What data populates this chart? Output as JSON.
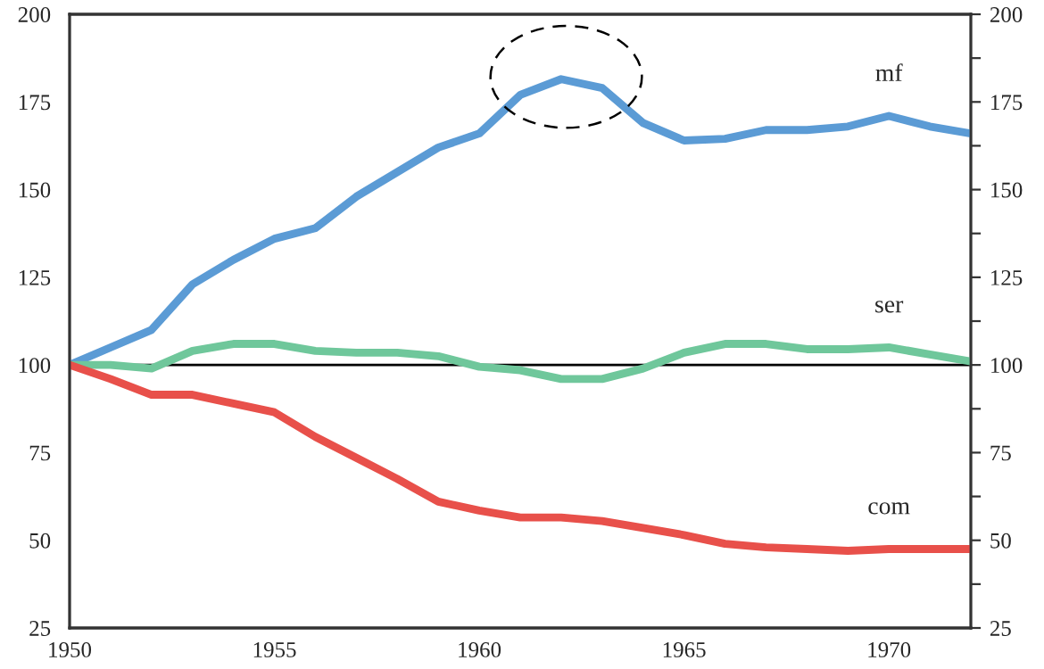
{
  "chart_data": {
    "type": "line",
    "x": [
      1950,
      1951,
      1952,
      1953,
      1954,
      1955,
      1956,
      1957,
      1958,
      1959,
      1960,
      1961,
      1962,
      1963,
      1964,
      1965,
      1966,
      1967,
      1968,
      1969,
      1970,
      1971,
      1972
    ],
    "series": [
      {
        "name": "mf",
        "color": "#5b9bd5",
        "values": [
          100,
          105,
          110,
          123,
          130,
          136,
          139,
          148,
          155,
          162,
          166,
          177,
          181.5,
          179,
          169,
          164,
          164.5,
          167,
          167,
          168,
          171,
          168,
          166
        ]
      },
      {
        "name": "ser",
        "color": "#6fc79b",
        "values": [
          100,
          100,
          99,
          104,
          106,
          106,
          104,
          103.5,
          103.5,
          102.5,
          99.5,
          98.5,
          96,
          96,
          99,
          103.5,
          106,
          106,
          104.5,
          104.5,
          105,
          103,
          101
        ]
      },
      {
        "name": "com",
        "color": "#e8504a",
        "values": [
          100,
          96,
          91.5,
          91.5,
          89,
          86.5,
          79.5,
          73.5,
          67.5,
          61,
          58.5,
          56.5,
          56.5,
          55.5,
          53.5,
          51.5,
          49,
          48,
          47.5,
          47,
          47.5,
          47.5,
          47.5
        ]
      }
    ],
    "xlim": [
      1950,
      1972
    ],
    "xticks": [
      1950,
      1955,
      1960,
      1965,
      1970,
      {
        "value": 1972,
        "label": null
      }
    ],
    "ylim": [
      25,
      200
    ],
    "yticks": [
      25,
      {
        "value": 37.5,
        "label": null
      },
      50,
      {
        "value": 62.5,
        "label": null
      },
      75,
      {
        "value": 87.5,
        "label": null
      },
      100,
      {
        "value": 112.5,
        "label": null
      },
      125,
      {
        "value": 137.5,
        "label": null
      },
      150,
      {
        "value": 162.5,
        "label": null
      },
      175,
      {
        "value": 187.5,
        "label": null
      },
      200
    ],
    "y2lim": [
      25,
      200
    ],
    "y2ticks": [
      25,
      {
        "value": 37.5,
        "label": null
      },
      50,
      {
        "value": 62.5,
        "label": null
      },
      75,
      {
        "value": 87.5,
        "label": null
      },
      100,
      {
        "value": 112.5,
        "label": null
      },
      125,
      {
        "value": 137.5,
        "label": null
      },
      150,
      {
        "value": 162.5,
        "label": null
      },
      175,
      {
        "value": 187.5,
        "label": null
      },
      200
    ],
    "ref_lines": [
      {
        "axis": "y",
        "value": 100,
        "color": "#000000",
        "line_style": "solid"
      }
    ],
    "grid": false,
    "legend": false,
    "marker": "none",
    "line_style": "solid"
  }
}
